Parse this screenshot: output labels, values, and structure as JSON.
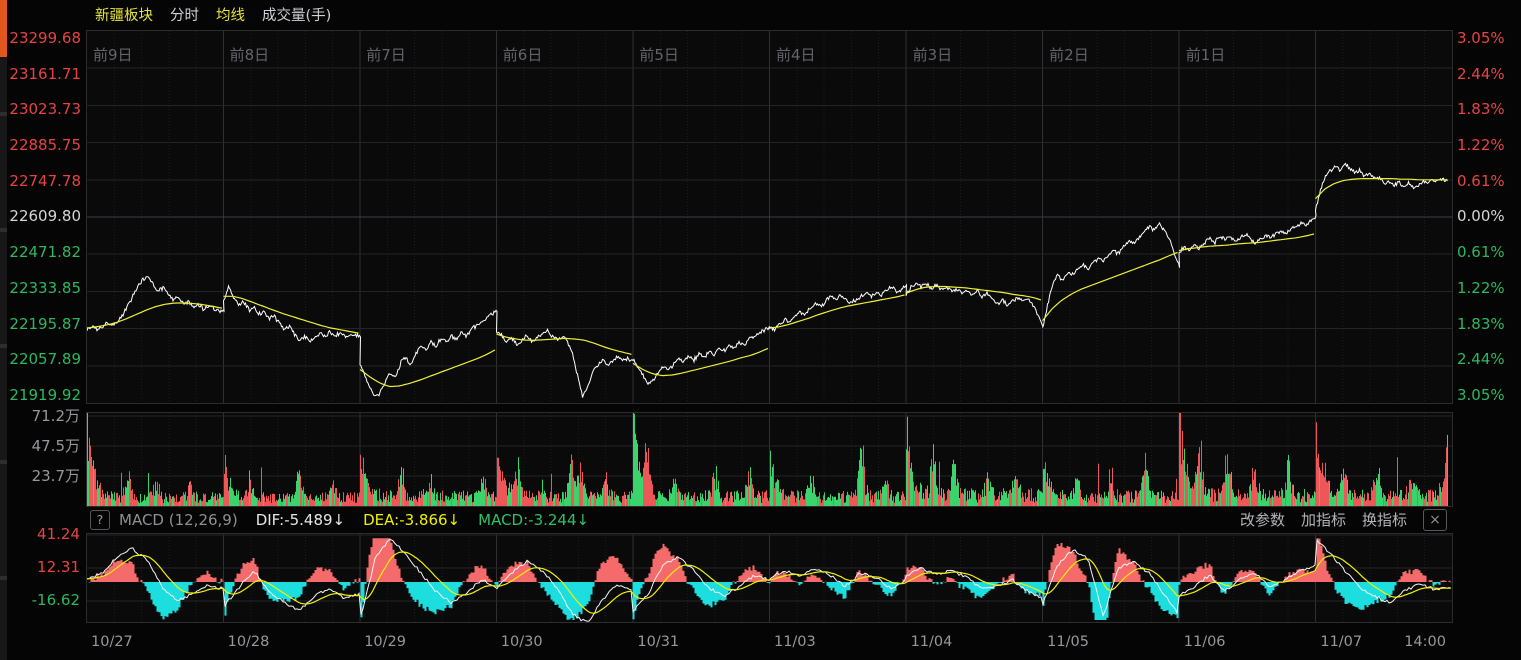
{
  "header": {
    "tabs": [
      {
        "label": "新疆板块",
        "tone": "yellow"
      },
      {
        "label": "分时",
        "tone": "white"
      },
      {
        "label": "均线",
        "tone": "yellow"
      },
      {
        "label": "成交量(手)",
        "tone": "white"
      }
    ]
  },
  "axes": {
    "left_price": [
      {
        "text": "23299.68",
        "tone": "up"
      },
      {
        "text": "23161.71",
        "tone": "up"
      },
      {
        "text": "23023.73",
        "tone": "up"
      },
      {
        "text": "22885.75",
        "tone": "up"
      },
      {
        "text": "22747.78",
        "tone": "up"
      },
      {
        "text": "22609.80",
        "tone": "flat"
      },
      {
        "text": "22471.82",
        "tone": "down"
      },
      {
        "text": "22333.85",
        "tone": "down"
      },
      {
        "text": "22195.87",
        "tone": "down"
      },
      {
        "text": "22057.89",
        "tone": "down"
      },
      {
        "text": "21919.92",
        "tone": "down"
      }
    ],
    "right_pct": [
      {
        "text": "3.05%",
        "tone": "up"
      },
      {
        "text": "2.44%",
        "tone": "up"
      },
      {
        "text": "1.83%",
        "tone": "up"
      },
      {
        "text": "1.22%",
        "tone": "up"
      },
      {
        "text": "0.61%",
        "tone": "up"
      },
      {
        "text": "0.00%",
        "tone": "flat"
      },
      {
        "text": "0.61%",
        "tone": "down"
      },
      {
        "text": "1.22%",
        "tone": "down"
      },
      {
        "text": "1.83%",
        "tone": "down"
      },
      {
        "text": "2.44%",
        "tone": "down"
      },
      {
        "text": "3.05%",
        "tone": "down"
      }
    ],
    "volume": [
      {
        "text": "71.2万",
        "value": 71.2
      },
      {
        "text": "47.5万",
        "value": 47.5
      },
      {
        "text": "23.7万",
        "value": 23.7
      }
    ],
    "macd": [
      {
        "text": "41.24",
        "tone": "up",
        "value": 41.24
      },
      {
        "text": "12.31",
        "tone": "up",
        "value": 12.31
      },
      {
        "text": "-16.62",
        "tone": "down",
        "value": -16.62
      }
    ],
    "day_labels": [
      "前9日",
      "前8日",
      "前7日",
      "前6日",
      "前5日",
      "前4日",
      "前3日",
      "前2日",
      "前1日",
      ""
    ],
    "dates": [
      "10/27",
      "10/28",
      "10/29",
      "10/30",
      "10/31",
      "11/03",
      "11/04",
      "11/05",
      "11/06",
      "11/07"
    ],
    "time_label": "14:00"
  },
  "macd_bar": {
    "help": "?",
    "name": "MACD (12,26,9)",
    "dif": "DIF:-5.489↓",
    "dea": "DEA:-3.866↓",
    "macd": "MACD:-3.244↓",
    "buttons": [
      "改参数",
      "加指标",
      "换指标"
    ],
    "close": "×"
  },
  "colors": {
    "up_red": "#e64444",
    "down_green": "#2db860",
    "flat_white": "#d6d6da",
    "price_line": "#ffffff",
    "avg_line": "#efef34",
    "vol_red": "#ee5757",
    "vol_green": "#3bd46c",
    "hist_red": "#f56a6a",
    "hist_cyan": "#1cdede",
    "dif_line": "#f5f5f5",
    "dea_line": "#f0f000",
    "grid_day": "#303034",
    "grid_sub": "#1c1c1f",
    "grid_h": "#242428",
    "grid_zero": "#3e3e44"
  },
  "chart_data": {
    "type": "line",
    "title": "新疆板块 多日分时",
    "baseline_price": 22609.8,
    "pct_range": [
      -3.05,
      3.05
    ],
    "volume_range_wan": [
      0,
      74.3
    ],
    "macd_range": [
      -35.0,
      41.9
    ],
    "x_categories": [
      "10/27",
      "10/28",
      "10/29",
      "10/30",
      "10/31",
      "11/03",
      "11/04",
      "11/05",
      "11/06",
      "11/07"
    ],
    "last_values": {
      "dif": -5.489,
      "dea": -3.866,
      "macd": -3.244
    },
    "days": [
      {
        "date": "10/27",
        "price": [
          -1.85,
          -1.78,
          -1.86,
          -1.8,
          -1.72,
          -1.78,
          -1.7,
          -1.62,
          -1.45,
          -1.3,
          -1.12,
          -1.02,
          -0.98,
          -1.1,
          -1.22,
          -1.15,
          -1.28,
          -1.35,
          -1.3,
          -1.42,
          -1.38,
          -1.48,
          -1.44,
          -1.52,
          -1.46,
          -1.5,
          -1.56,
          -1.52
        ],
        "avg": [
          -1.82,
          -1.8,
          -1.77,
          -1.73,
          -1.67,
          -1.6,
          -1.53,
          -1.47,
          -1.43,
          -1.41,
          -1.41,
          -1.42,
          -1.44,
          -1.47,
          -1.5
        ],
        "dif": [
          2,
          8,
          22,
          29,
          18,
          -5,
          -16,
          -10,
          -3,
          -6
        ],
        "vol": {
          "open": 70,
          "base": 7,
          "spikes": [
            [
              0.3,
              16
            ],
            [
              0.5,
              13
            ],
            [
              0.75,
              11
            ]
          ]
        },
        "extent": 1.0
      },
      {
        "date": "10/28",
        "price": [
          -1.38,
          -1.15,
          -1.32,
          -1.45,
          -1.38,
          -1.52,
          -1.48,
          -1.6,
          -1.55,
          -1.68,
          -1.62,
          -1.75,
          -1.85,
          -1.78,
          -1.92,
          -2.02,
          -1.95,
          -2.05,
          -1.98,
          -1.9,
          -1.96,
          -1.88,
          -1.94,
          -1.9,
          -1.95,
          -1.92,
          -1.96,
          -1.93
        ],
        "avg": [
          -1.3,
          -1.3,
          -1.34,
          -1.4,
          -1.46,
          -1.52,
          -1.58,
          -1.63,
          -1.68,
          -1.73,
          -1.78,
          -1.82,
          -1.85,
          -1.88,
          -1.91
        ],
        "dif": [
          -22,
          -5,
          10,
          -8,
          -18,
          -25,
          -12,
          -6,
          -15,
          -10
        ],
        "vol": {
          "open": 34,
          "base": 7,
          "spikes": [
            [
              0.2,
              15
            ],
            [
              0.55,
              20
            ],
            [
              0.8,
              11
            ]
          ]
        },
        "extent": 1.0
      },
      {
        "date": "10/29",
        "price": [
          -2.42,
          -2.62,
          -2.8,
          -2.95,
          -2.88,
          -2.7,
          -2.55,
          -2.62,
          -2.4,
          -2.3,
          -2.42,
          -2.25,
          -2.1,
          -2.18,
          -2.05,
          -2.12,
          -1.98,
          -2.05,
          -1.95,
          -2.02,
          -1.9,
          -1.95,
          -1.85,
          -1.78,
          -1.72,
          -1.65,
          -1.58,
          -1.55
        ],
        "avg": [
          -2.5,
          -2.62,
          -2.72,
          -2.78,
          -2.77,
          -2.73,
          -2.68,
          -2.62,
          -2.56,
          -2.5,
          -2.44,
          -2.38,
          -2.32,
          -2.25,
          -2.16
        ],
        "dif": [
          -33,
          20,
          38,
          25,
          8,
          -8,
          -18,
          -10,
          2,
          -4
        ],
        "vol": {
          "open": 46,
          "base": 8,
          "spikes": [
            [
              0.3,
              18
            ],
            [
              0.5,
              16
            ],
            [
              0.9,
              13
            ]
          ]
        },
        "extent": 1.0
      },
      {
        "date": "10/30",
        "price": [
          -1.88,
          -1.95,
          -2.05,
          -1.98,
          -2.1,
          -2.02,
          -1.95,
          -2.05,
          -1.98,
          -1.9,
          -1.85,
          -1.95,
          -2.02,
          -1.96,
          -2.05,
          -2.25,
          -2.6,
          -2.95,
          -2.78,
          -2.55,
          -2.42,
          -2.35,
          -2.42,
          -2.35,
          -2.3,
          -2.35,
          -2.32,
          -2.35
        ],
        "avg": [
          -1.92,
          -1.97,
          -2.0,
          -2.02,
          -2.02,
          -2.01,
          -2.0,
          -1.99,
          -2.0,
          -2.02,
          -2.07,
          -2.13,
          -2.18,
          -2.22,
          -2.26
        ],
        "dif": [
          -6,
          8,
          18,
          10,
          -5,
          -28,
          -36,
          -15,
          -2,
          -8
        ],
        "vol": {
          "open": 51,
          "base": 8,
          "spikes": [
            [
              0.15,
              20
            ],
            [
              0.55,
              28
            ],
            [
              0.62,
              22
            ],
            [
              0.8,
              11
            ]
          ]
        },
        "extent": 1.0
      },
      {
        "date": "10/31",
        "price": [
          -2.32,
          -2.48,
          -2.6,
          -2.75,
          -2.68,
          -2.55,
          -2.45,
          -2.52,
          -2.4,
          -2.32,
          -2.38,
          -2.28,
          -2.35,
          -2.25,
          -2.3,
          -2.2,
          -2.26,
          -2.15,
          -2.2,
          -2.1,
          -2.15,
          -2.05,
          -2.1,
          -2.0,
          -1.95,
          -1.9,
          -1.85,
          -1.82
        ],
        "avg": [
          -2.4,
          -2.5,
          -2.57,
          -2.6,
          -2.59,
          -2.56,
          -2.52,
          -2.48,
          -2.44,
          -2.4,
          -2.36,
          -2.31,
          -2.27,
          -2.21,
          -2.14
        ],
        "dif": [
          -25,
          -10,
          15,
          22,
          10,
          -5,
          -12,
          -4,
          6,
          2
        ],
        "vol": {
          "open": 73,
          "base": 8,
          "spikes": [
            [
              0.1,
              28
            ],
            [
              0.3,
              15
            ],
            [
              0.6,
              18
            ],
            [
              0.85,
              22
            ]
          ]
        },
        "extent": 1.0
      },
      {
        "date": "11/03",
        "price": [
          -1.8,
          -1.85,
          -1.75,
          -1.68,
          -1.74,
          -1.62,
          -1.55,
          -1.6,
          -1.5,
          -1.42,
          -1.48,
          -1.38,
          -1.3,
          -1.36,
          -1.28,
          -1.35,
          -1.42,
          -1.36,
          -1.3,
          -1.25,
          -1.3,
          -1.22,
          -1.28,
          -1.2,
          -1.15,
          -1.22,
          -1.18,
          -1.12
        ],
        "avg": [
          -1.82,
          -1.8,
          -1.76,
          -1.71,
          -1.66,
          -1.6,
          -1.55,
          -1.5,
          -1.46,
          -1.43,
          -1.4,
          -1.37,
          -1.34,
          -1.31,
          -1.27
        ],
        "dif": [
          4,
          10,
          5,
          12,
          6,
          -4,
          8,
          4,
          -6,
          2
        ],
        "vol": {
          "open": 36,
          "base": 8,
          "spikes": [
            [
              0.3,
              15
            ],
            [
              0.67,
              38
            ],
            [
              0.85,
              11
            ]
          ]
        },
        "extent": 1.0
      },
      {
        "date": "11/04",
        "price": [
          -1.28,
          -1.15,
          -1.08,
          -1.15,
          -1.1,
          -1.18,
          -1.12,
          -1.2,
          -1.15,
          -1.22,
          -1.18,
          -1.25,
          -1.2,
          -1.28,
          -1.22,
          -1.3,
          -1.26,
          -1.35,
          -1.42,
          -1.36,
          -1.45,
          -1.38,
          -1.32,
          -1.38,
          -1.35,
          -1.45,
          -1.6,
          -1.8
        ],
        "avg": [
          -1.25,
          -1.19,
          -1.15,
          -1.14,
          -1.14,
          -1.15,
          -1.16,
          -1.18,
          -1.2,
          -1.22,
          -1.24,
          -1.27,
          -1.29,
          -1.32,
          -1.37
        ],
        "dif": [
          6,
          12,
          6,
          10,
          4,
          -6,
          -4,
          2,
          -8,
          -14
        ],
        "vol": {
          "open": 54,
          "base": 9,
          "spikes": [
            [
              0.2,
              28
            ],
            [
              0.35,
              22
            ],
            [
              0.6,
              15
            ],
            [
              0.8,
              18
            ]
          ]
        },
        "extent": 1.0
      },
      {
        "date": "11/05",
        "price": [
          -1.82,
          -1.45,
          -1.1,
          -0.95,
          -1.05,
          -0.9,
          -0.95,
          -0.85,
          -0.78,
          -0.85,
          -0.75,
          -0.68,
          -0.74,
          -0.62,
          -0.55,
          -0.6,
          -0.48,
          -0.4,
          -0.45,
          -0.35,
          -0.25,
          -0.15,
          -0.22,
          -0.12,
          -0.2,
          -0.35,
          -0.6,
          -0.8
        ],
        "avg": [
          -1.7,
          -1.5,
          -1.36,
          -1.26,
          -1.18,
          -1.12,
          -1.06,
          -1.0,
          -0.94,
          -0.88,
          -0.82,
          -0.76,
          -0.7,
          -0.63,
          -0.57
        ],
        "dif": [
          -20,
          15,
          28,
          20,
          -30,
          12,
          18,
          8,
          -10,
          -28
        ],
        "vol": {
          "open": 36,
          "base": 8,
          "spikes": [
            [
              0.25,
              16
            ],
            [
              0.5,
              15
            ],
            [
              0.75,
              26
            ]
          ]
        },
        "extent": 1.0
      },
      {
        "date": "11/06",
        "price": [
          -0.58,
          -0.48,
          -0.55,
          -0.45,
          -0.52,
          -0.42,
          -0.35,
          -0.42,
          -0.3,
          -0.38,
          -0.32,
          -0.4,
          -0.35,
          -0.28,
          -0.35,
          -0.42,
          -0.36,
          -0.3,
          -0.35,
          -0.28,
          -0.22,
          -0.28,
          -0.2,
          -0.15,
          -0.1,
          -0.15,
          -0.05,
          0.02
        ],
        "avg": [
          -0.55,
          -0.52,
          -0.5,
          -0.48,
          -0.47,
          -0.46,
          -0.44,
          -0.43,
          -0.42,
          -0.4,
          -0.38,
          -0.36,
          -0.34,
          -0.31,
          -0.27
        ],
        "dif": [
          -12,
          -4,
          6,
          -8,
          2,
          8,
          -4,
          2,
          10,
          14
        ],
        "vol": {
          "open": 72,
          "base": 9,
          "spikes": [
            [
              0.15,
              36
            ],
            [
              0.35,
              28
            ],
            [
              0.55,
              18
            ],
            [
              0.8,
              22
            ]
          ]
        },
        "extent": 1.0
      },
      {
        "date": "11/07",
        "price": [
          0.12,
          0.45,
          0.68,
          0.75,
          0.82,
          0.78,
          0.85,
          0.8,
          0.72,
          0.76,
          0.68,
          0.72,
          0.65,
          0.65,
          0.55,
          0.6,
          0.52,
          0.58,
          0.5,
          0.55,
          0.48,
          0.52,
          0.58,
          0.55,
          0.6,
          0.57,
          0.62,
          0.6
        ],
        "avg": [
          0.3,
          0.46,
          0.55,
          0.6,
          0.62,
          0.63,
          0.63,
          0.63,
          0.63,
          0.62,
          0.62,
          0.61,
          0.61,
          0.61,
          0.61
        ],
        "dif": [
          38,
          25,
          10,
          -5,
          -12,
          -18,
          -8,
          -2,
          -6,
          -5
        ],
        "vol": {
          "open": 58,
          "base": 9,
          "spikes": [
            [
              0.2,
              26
            ],
            [
              0.45,
              16
            ],
            [
              0.7,
              13
            ],
            [
              0.97,
              36
            ]
          ]
        },
        "extent": 0.97
      }
    ]
  }
}
